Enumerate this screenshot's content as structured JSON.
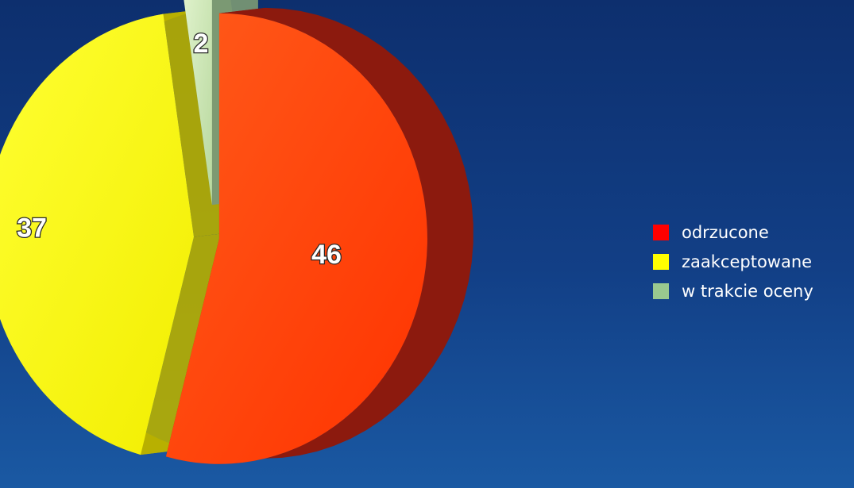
{
  "chart_data": {
    "type": "pie",
    "title": "",
    "categories": [
      "odrzucone",
      "zaakceptowane",
      "w trakcie oceny"
    ],
    "values": [
      46,
      37,
      2
    ],
    "colors": [
      "#ff3300",
      "#ffff00",
      "#cce6b0"
    ],
    "side_colors": [
      "#8c1a0e",
      "#b8b000",
      "#7c9a73"
    ],
    "legend_swatch_colors": [
      "#ff0000",
      "#ffff00",
      "#99c98f"
    ],
    "data_labels": [
      "46",
      "37",
      "2"
    ],
    "legend_position": "right",
    "exploded": true,
    "three_d": true
  },
  "legend": {
    "items": [
      {
        "label": "odrzucone"
      },
      {
        "label": "zaakceptowane"
      },
      {
        "label": "w trakcie oceny"
      }
    ]
  }
}
